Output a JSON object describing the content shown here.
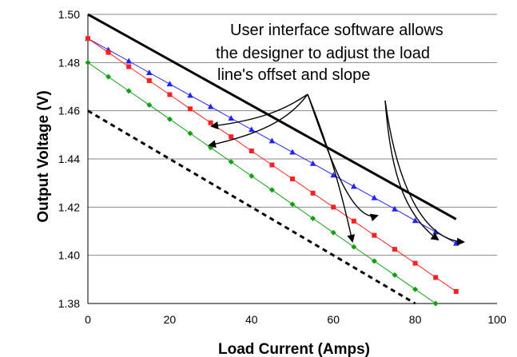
{
  "chart_data": {
    "type": "line",
    "xlabel": "Load Current (Amps)",
    "ylabel": "Output Voltage (V)",
    "xlim": [
      0,
      100
    ],
    "ylim": [
      1.38,
      1.5
    ],
    "x_ticks": [
      0,
      20,
      40,
      60,
      80,
      100
    ],
    "y_ticks": [
      1.38,
      1.4,
      1.42,
      1.44,
      1.46,
      1.48,
      1.5
    ],
    "grid": "horizontal",
    "legend": "none",
    "series": [
      {
        "style": "solid-black-thick",
        "color": "#000000",
        "marker": "none",
        "x": [
          0,
          90
        ],
        "y": [
          1.5,
          1.415
        ]
      },
      {
        "style": "blue-triangles",
        "color": "#2222ff",
        "marker": "triangle",
        "x": [
          0,
          5,
          10,
          15,
          20,
          25,
          30,
          35,
          40,
          45,
          50,
          55,
          60,
          65,
          70,
          75,
          80,
          85,
          90
        ],
        "y": [
          1.49,
          1.4853,
          1.4806,
          1.4758,
          1.4711,
          1.4664,
          1.4617,
          1.4569,
          1.4522,
          1.4475,
          1.4428,
          1.4381,
          1.4333,
          1.4286,
          1.4239,
          1.4192,
          1.4144,
          1.4097,
          1.405
        ]
      },
      {
        "style": "red-squares",
        "color": "#ff2020",
        "marker": "square",
        "x": [
          0,
          5,
          10,
          15,
          20,
          25,
          30,
          35,
          40,
          45,
          50,
          55,
          60,
          65,
          70,
          75,
          80,
          85,
          90
        ],
        "y": [
          1.49,
          1.4842,
          1.4783,
          1.4725,
          1.4667,
          1.4608,
          1.455,
          1.4492,
          1.4433,
          1.4375,
          1.4317,
          1.4258,
          1.42,
          1.4142,
          1.4083,
          1.4025,
          1.3967,
          1.3908,
          1.385
        ]
      },
      {
        "style": "green-diamonds",
        "color": "#10a010",
        "marker": "diamond",
        "x": [
          0,
          5,
          10,
          15,
          20,
          25,
          30,
          35,
          40,
          45,
          50,
          55,
          60,
          65,
          70,
          75,
          80,
          85
        ],
        "y": [
          1.48,
          1.4741,
          1.4682,
          1.4624,
          1.4565,
          1.4506,
          1.4447,
          1.4388,
          1.4329,
          1.4271,
          1.4212,
          1.4153,
          1.4094,
          1.4035,
          1.3976,
          1.3918,
          1.3859,
          1.38
        ]
      },
      {
        "style": "dashed-black-thick",
        "color": "#000000",
        "marker": "none",
        "x": [
          0,
          80
        ],
        "y": [
          1.46,
          1.38
        ]
      }
    ],
    "annotations": {
      "lines": [
        "User interface software allows",
        "the designer to adjust the load",
        "line's offset and slope"
      ]
    }
  }
}
